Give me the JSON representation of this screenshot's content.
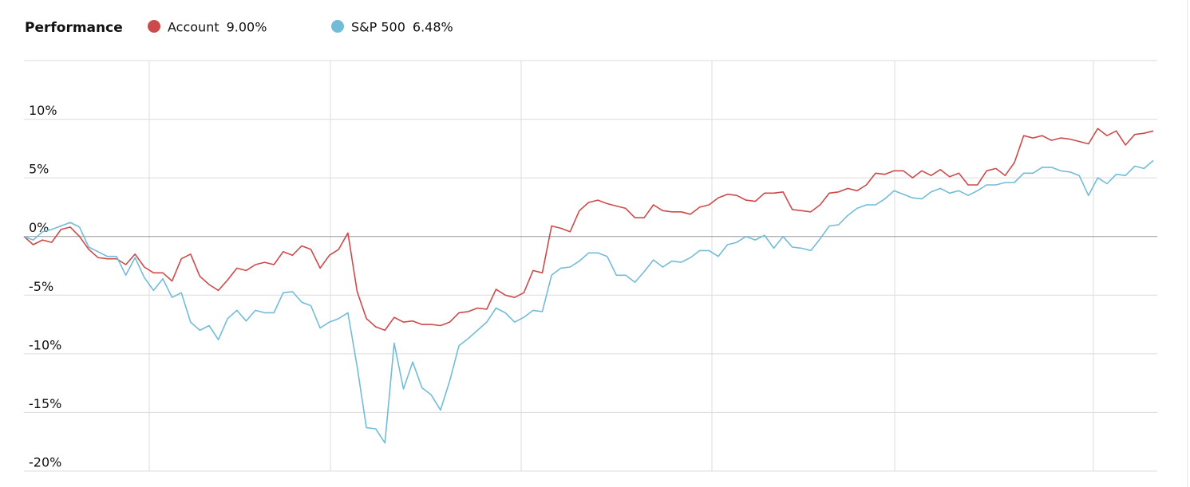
{
  "chart_data": {
    "type": "line",
    "title": "Performance",
    "categories": [
      null,
      null,
      null,
      null,
      null,
      null,
      null,
      null,
      null,
      null,
      null,
      null,
      null,
      null,
      null,
      null,
      null,
      null,
      null,
      null,
      null,
      null,
      null,
      null,
      null,
      null,
      null,
      null,
      null,
      null,
      null,
      null,
      null,
      null,
      null,
      null,
      null,
      null,
      null,
      null,
      null,
      null,
      null,
      null,
      null,
      null,
      null,
      null,
      null,
      null,
      null,
      null,
      null,
      null,
      null,
      null,
      null,
      null,
      null,
      null,
      null,
      null,
      null,
      null,
      null,
      null,
      null,
      null,
      null,
      null,
      null,
      null,
      null,
      null,
      null,
      null,
      null,
      null,
      null,
      null,
      null,
      null,
      null,
      null,
      null,
      null,
      null,
      null,
      null,
      null,
      null,
      null,
      null,
      null,
      null,
      null,
      null,
      null,
      null,
      null,
      null,
      null,
      null,
      null,
      null,
      null,
      null,
      null,
      null,
      null,
      null,
      null,
      null,
      null,
      null,
      null,
      null,
      null,
      null,
      null,
      null,
      null,
      null
    ],
    "series": [
      {
        "name": "Account",
        "legend_label": "9.00%",
        "color": "#cc4a4a",
        "values": [
          0,
          -0.7,
          -0.3,
          -0.5,
          0.6,
          0.8,
          0,
          -1.1,
          -1.8,
          -1.9,
          -1.9,
          -2.4,
          -1.5,
          -2.6,
          -3.1,
          -3.1,
          -3.8,
          -1.9,
          -1.5,
          -3.4,
          -4.1,
          -4.6,
          -3.7,
          -2.7,
          -2.9,
          -2.4,
          -2.2,
          -2.4,
          -1.3,
          -1.6,
          -0.8,
          -1.1,
          -2.7,
          -1.6,
          -1.1,
          0.3,
          -4.7,
          -7.0,
          -7.7,
          -8.0,
          -6.9,
          -7.3,
          -7.2,
          -7.5,
          -7.5,
          -7.6,
          -7.3,
          -6.5,
          -6.4,
          -6.1,
          -6.2,
          -4.5,
          -5.0,
          -5.2,
          -4.8,
          -2.9,
          -3.1,
          0.9,
          0.7,
          0.4,
          2.2,
          2.9,
          3.1,
          2.8,
          2.6,
          2.4,
          1.6,
          1.6,
          2.7,
          2.2,
          2.1,
          2.1,
          1.9,
          2.5,
          2.7,
          3.3,
          3.6,
          3.5,
          3.1,
          3.0,
          3.7,
          3.7,
          3.8,
          2.3,
          2.2,
          2.1,
          2.7,
          3.7,
          3.8,
          4.1,
          3.9,
          4.4,
          5.4,
          5.3,
          5.6,
          5.6,
          5.0,
          5.6,
          5.2,
          5.7,
          5.1,
          5.4,
          4.4,
          4.4,
          5.6,
          5.8,
          5.2,
          6.3,
          8.6,
          8.4,
          8.6,
          8.2,
          8.4,
          8.3,
          8.1,
          7.9,
          9.2,
          8.6,
          9.0,
          7.8,
          8.7,
          8.8,
          9.0
        ]
      },
      {
        "name": "S&P 500",
        "legend_label": "6.48%",
        "color": "#72bcd8",
        "values": [
          0,
          -0.3,
          0.4,
          0.6,
          0.9,
          1.2,
          0.8,
          -0.9,
          -1.3,
          -1.7,
          -1.7,
          -3.3,
          -1.8,
          -3.5,
          -4.6,
          -3.6,
          -5.2,
          -4.8,
          -7.3,
          -8.0,
          -7.6,
          -8.8,
          -7.0,
          -6.3,
          -7.2,
          -6.3,
          -6.5,
          -6.5,
          -4.8,
          -4.7,
          -5.6,
          -5.9,
          -7.8,
          -7.3,
          -7.0,
          -6.5,
          -11.1,
          -16.3,
          -16.4,
          -17.6,
          -9.1,
          -13.0,
          -10.7,
          -12.9,
          -13.5,
          -14.8,
          -12.3,
          -9.3,
          -8.7,
          -8.0,
          -7.3,
          -6.1,
          -6.5,
          -7.3,
          -6.9,
          -6.3,
          -6.4,
          -3.3,
          -2.7,
          -2.6,
          -2.1,
          -1.4,
          -1.4,
          -1.7,
          -3.3,
          -3.3,
          -3.9,
          -3.0,
          -2.0,
          -2.6,
          -2.1,
          -2.2,
          -1.8,
          -1.2,
          -1.2,
          -1.7,
          -0.7,
          -0.5,
          0,
          -0.3,
          0.1,
          -1.0,
          0,
          -0.9,
          -1.0,
          -1.2,
          -0.2,
          0.9,
          1.0,
          1.8,
          2.4,
          2.7,
          2.7,
          3.2,
          3.9,
          3.6,
          3.3,
          3.2,
          3.8,
          4.1,
          3.7,
          3.9,
          3.5,
          3.9,
          4.4,
          4.4,
          4.6,
          4.6,
          5.4,
          5.4,
          5.9,
          5.9,
          5.6,
          5.5,
          5.2,
          3.5,
          5.0,
          4.5,
          5.3,
          5.2,
          6.0,
          5.8,
          6.48
        ]
      }
    ],
    "ylim": [
      -20,
      15
    ],
    "yticks": [
      {
        "value": 10,
        "label": "10%"
      },
      {
        "value": 5,
        "label": "5%"
      },
      {
        "value": 0,
        "label": "0%"
      },
      {
        "value": -5,
        "label": "-5%"
      },
      {
        "value": -10,
        "label": "-10%"
      },
      {
        "value": -15,
        "label": "-15%"
      },
      {
        "value": -20,
        "label": "-20%"
      }
    ],
    "grid": true
  }
}
